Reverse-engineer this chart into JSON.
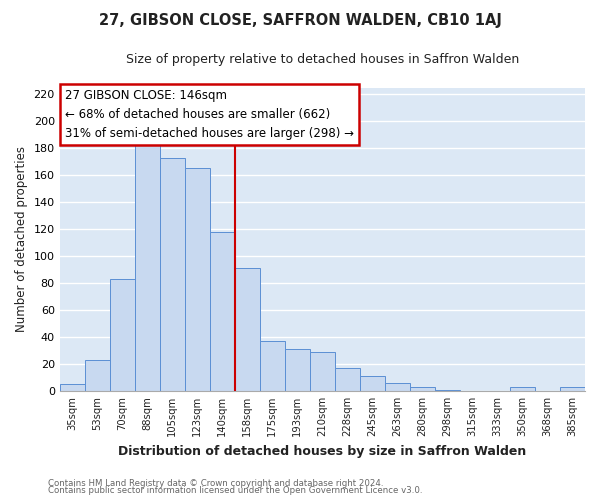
{
  "title": "27, GIBSON CLOSE, SAFFRON WALDEN, CB10 1AJ",
  "subtitle": "Size of property relative to detached houses in Saffron Walden",
  "xlabel": "Distribution of detached houses by size in Saffron Walden",
  "ylabel": "Number of detached properties",
  "bar_color": "#c8d9f0",
  "bar_edge_color": "#5b8fd4",
  "categories": [
    "35sqm",
    "53sqm",
    "70sqm",
    "88sqm",
    "105sqm",
    "123sqm",
    "140sqm",
    "158sqm",
    "175sqm",
    "193sqm",
    "210sqm",
    "228sqm",
    "245sqm",
    "263sqm",
    "280sqm",
    "298sqm",
    "315sqm",
    "333sqm",
    "350sqm",
    "368sqm",
    "385sqm"
  ],
  "values": [
    5,
    23,
    83,
    182,
    173,
    165,
    118,
    91,
    37,
    31,
    29,
    17,
    11,
    6,
    3,
    1,
    0,
    0,
    3,
    0,
    3
  ],
  "vline_x": 6.5,
  "vline_color": "#cc0000",
  "ylim": [
    0,
    225
  ],
  "yticks": [
    0,
    20,
    40,
    60,
    80,
    100,
    120,
    140,
    160,
    180,
    200,
    220
  ],
  "annotation_title": "27 GIBSON CLOSE: 146sqm",
  "annotation_line1": "← 68% of detached houses are smaller (662)",
  "annotation_line2": "31% of semi-detached houses are larger (298) →",
  "footer1": "Contains HM Land Registry data © Crown copyright and database right 2024.",
  "footer2": "Contains public sector information licensed under the Open Government Licence v3.0.",
  "fig_bg_color": "#ffffff",
  "plot_bg_color": "#dce8f5",
  "grid_color": "#ffffff",
  "title_fontsize": 10.5,
  "subtitle_fontsize": 9
}
